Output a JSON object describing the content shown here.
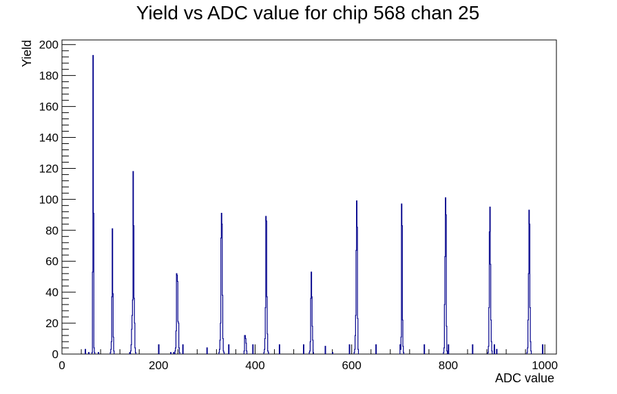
{
  "chart_data": {
    "type": "bar",
    "title": "Yield vs ADC value for chip 568 chan 25",
    "xlabel": "ADC value",
    "ylabel": "Yield",
    "xlim": [
      0,
      1024
    ],
    "ylim": [
      0,
      203
    ],
    "x_ticks": [
      0,
      200,
      400,
      600,
      800,
      1000
    ],
    "y_ticks": [
      0,
      20,
      40,
      60,
      80,
      100,
      120,
      140,
      160,
      180,
      200
    ],
    "grid": false,
    "legend": "none",
    "line_color": "#00008b",
    "bin_width": 1,
    "series": [
      {
        "values": [
          [
            48,
            3
          ],
          [
            55,
            1
          ],
          [
            62,
            1
          ],
          [
            63,
            53
          ],
          [
            64,
            193
          ],
          [
            65,
            91
          ],
          [
            66,
            4
          ],
          [
            67,
            1
          ],
          [
            75,
            1
          ],
          [
            100,
            1
          ],
          [
            101,
            3
          ],
          [
            102,
            8
          ],
          [
            103,
            37
          ],
          [
            104,
            81
          ],
          [
            105,
            39
          ],
          [
            106,
            11
          ],
          [
            107,
            2
          ],
          [
            140,
            1
          ],
          [
            142,
            2
          ],
          [
            143,
            6
          ],
          [
            144,
            16
          ],
          [
            145,
            25
          ],
          [
            146,
            35
          ],
          [
            147,
            118
          ],
          [
            148,
            83
          ],
          [
            149,
            36
          ],
          [
            150,
            20
          ],
          [
            151,
            4
          ],
          [
            152,
            1
          ],
          [
            200,
            6
          ],
          [
            225,
            1
          ],
          [
            231,
            1
          ],
          [
            234,
            2
          ],
          [
            235,
            4
          ],
          [
            236,
            15
          ],
          [
            237,
            52
          ],
          [
            238,
            51
          ],
          [
            239,
            47
          ],
          [
            240,
            21
          ],
          [
            241,
            20
          ],
          [
            242,
            4
          ],
          [
            243,
            1
          ],
          [
            250,
            6
          ],
          [
            300,
            4
          ],
          [
            325,
            1
          ],
          [
            326,
            3
          ],
          [
            327,
            9
          ],
          [
            328,
            20
          ],
          [
            329,
            75
          ],
          [
            330,
            91
          ],
          [
            331,
            84
          ],
          [
            332,
            38
          ],
          [
            333,
            10
          ],
          [
            334,
            2
          ],
          [
            335,
            1
          ],
          [
            345,
            6
          ],
          [
            377,
            2
          ],
          [
            378,
            12
          ],
          [
            379,
            12
          ],
          [
            380,
            10
          ],
          [
            381,
            7
          ],
          [
            382,
            2
          ],
          [
            395,
            6
          ],
          [
            418,
            1
          ],
          [
            419,
            3
          ],
          [
            420,
            10
          ],
          [
            421,
            30
          ],
          [
            422,
            89
          ],
          [
            423,
            86
          ],
          [
            424,
            37
          ],
          [
            425,
            13
          ],
          [
            426,
            2
          ],
          [
            427,
            1
          ],
          [
            450,
            6
          ],
          [
            500,
            6
          ],
          [
            512,
            1
          ],
          [
            513,
            2
          ],
          [
            514,
            8
          ],
          [
            515,
            36
          ],
          [
            516,
            53
          ],
          [
            517,
            37
          ],
          [
            518,
            18
          ],
          [
            519,
            9
          ],
          [
            520,
            1
          ],
          [
            545,
            5
          ],
          [
            560,
            1
          ],
          [
            595,
            6
          ],
          [
            605,
            1
          ],
          [
            606,
            3
          ],
          [
            607,
            12
          ],
          [
            608,
            25
          ],
          [
            609,
            67
          ],
          [
            610,
            99
          ],
          [
            611,
            82
          ],
          [
            612,
            23
          ],
          [
            613,
            3
          ],
          [
            650,
            6
          ],
          [
            700,
            6
          ],
          [
            701,
            3
          ],
          [
            702,
            11
          ],
          [
            703,
            97
          ],
          [
            704,
            83
          ],
          [
            705,
            22
          ],
          [
            706,
            5
          ],
          [
            707,
            1
          ],
          [
            750,
            6
          ],
          [
            790,
            1
          ],
          [
            791,
            4
          ],
          [
            792,
            32
          ],
          [
            793,
            63
          ],
          [
            794,
            101
          ],
          [
            795,
            90
          ],
          [
            796,
            18
          ],
          [
            797,
            2
          ],
          [
            800,
            6
          ],
          [
            850,
            6
          ],
          [
            882,
            1
          ],
          [
            883,
            5
          ],
          [
            884,
            30
          ],
          [
            885,
            79
          ],
          [
            886,
            95
          ],
          [
            887,
            58
          ],
          [
            888,
            22
          ],
          [
            889,
            8
          ],
          [
            890,
            2
          ],
          [
            895,
            6
          ],
          [
            900,
            3
          ],
          [
            963,
            1
          ],
          [
            964,
            4
          ],
          [
            965,
            22
          ],
          [
            966,
            52
          ],
          [
            967,
            93
          ],
          [
            968,
            84
          ],
          [
            969,
            30
          ],
          [
            970,
            8
          ],
          [
            971,
            2
          ],
          [
            995,
            6
          ]
        ]
      }
    ]
  }
}
